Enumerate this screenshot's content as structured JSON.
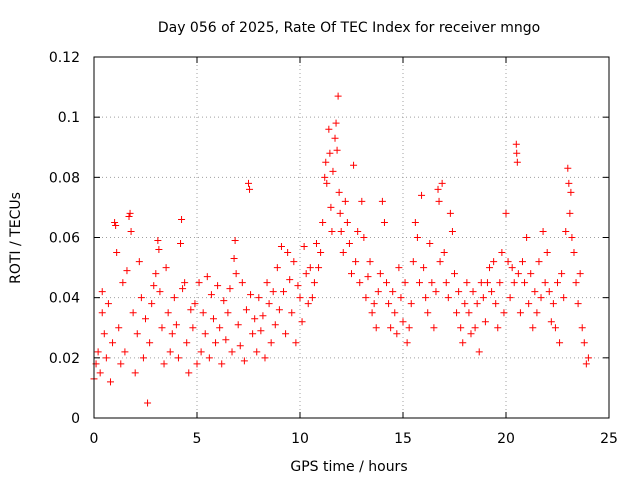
{
  "chart_data": {
    "type": "scatter",
    "title": "Day 056 of 2025, Rate Of TEC Index for receiver mngo",
    "xlabel": "GPS time / hours",
    "ylabel": "ROTI / TECUs",
    "xlim": [
      0,
      25
    ],
    "ylim": [
      0,
      0.12
    ],
    "xticks": [
      0,
      5,
      10,
      15,
      20,
      25
    ],
    "xtick_labels": [
      "0",
      "5",
      "10",
      "15",
      "20",
      "25"
    ],
    "yticks": [
      0,
      0.02,
      0.04,
      0.06,
      0.08,
      0.1,
      0.12
    ],
    "ytick_labels": [
      "0",
      "0.02",
      "0.04",
      "0.06",
      "0.08",
      "0.1",
      "0.12"
    ],
    "grid": true,
    "marker": "+",
    "series": [
      {
        "name": "ROTI",
        "color": "#ff0000",
        "points": [
          [
            0.0,
            0.013
          ],
          [
            0.1,
            0.018
          ],
          [
            0.2,
            0.022
          ],
          [
            0.3,
            0.015
          ],
          [
            0.4,
            0.035
          ],
          [
            0.4,
            0.042
          ],
          [
            0.5,
            0.028
          ],
          [
            0.6,
            0.02
          ],
          [
            0.7,
            0.038
          ],
          [
            0.8,
            0.012
          ],
          [
            0.9,
            0.025
          ],
          [
            1.0,
            0.065
          ],
          [
            1.05,
            0.064
          ],
          [
            1.1,
            0.055
          ],
          [
            1.2,
            0.03
          ],
          [
            1.3,
            0.018
          ],
          [
            1.4,
            0.045
          ],
          [
            1.5,
            0.022
          ],
          [
            1.6,
            0.049
          ],
          [
            1.7,
            0.067
          ],
          [
            1.75,
            0.068
          ],
          [
            1.8,
            0.062
          ],
          [
            1.9,
            0.035
          ],
          [
            2.0,
            0.015
          ],
          [
            2.1,
            0.028
          ],
          [
            2.2,
            0.052
          ],
          [
            2.3,
            0.04
          ],
          [
            2.4,
            0.02
          ],
          [
            2.5,
            0.033
          ],
          [
            2.6,
            0.005
          ],
          [
            2.7,
            0.025
          ],
          [
            2.8,
            0.038
          ],
          [
            2.9,
            0.044
          ],
          [
            3.0,
            0.048
          ],
          [
            3.1,
            0.059
          ],
          [
            3.15,
            0.056
          ],
          [
            3.2,
            0.042
          ],
          [
            3.3,
            0.03
          ],
          [
            3.4,
            0.018
          ],
          [
            3.5,
            0.05
          ],
          [
            3.6,
            0.035
          ],
          [
            3.7,
            0.022
          ],
          [
            3.8,
            0.028
          ],
          [
            3.9,
            0.04
          ],
          [
            4.0,
            0.031
          ],
          [
            4.1,
            0.02
          ],
          [
            4.2,
            0.058
          ],
          [
            4.25,
            0.066
          ],
          [
            4.3,
            0.043
          ],
          [
            4.4,
            0.045
          ],
          [
            4.5,
            0.025
          ],
          [
            4.6,
            0.015
          ],
          [
            4.7,
            0.036
          ],
          [
            4.8,
            0.03
          ],
          [
            4.9,
            0.038
          ],
          [
            5.0,
            0.018
          ],
          [
            5.1,
            0.045
          ],
          [
            5.2,
            0.022
          ],
          [
            5.3,
            0.035
          ],
          [
            5.4,
            0.028
          ],
          [
            5.5,
            0.047
          ],
          [
            5.6,
            0.02
          ],
          [
            5.7,
            0.041
          ],
          [
            5.8,
            0.033
          ],
          [
            5.9,
            0.025
          ],
          [
            6.0,
            0.044
          ],
          [
            6.1,
            0.03
          ],
          [
            6.2,
            0.018
          ],
          [
            6.3,
            0.039
          ],
          [
            6.4,
            0.026
          ],
          [
            6.5,
            0.035
          ],
          [
            6.6,
            0.043
          ],
          [
            6.7,
            0.022
          ],
          [
            6.8,
            0.053
          ],
          [
            6.85,
            0.059
          ],
          [
            6.9,
            0.048
          ],
          [
            7.0,
            0.031
          ],
          [
            7.1,
            0.024
          ],
          [
            7.2,
            0.045
          ],
          [
            7.3,
            0.019
          ],
          [
            7.4,
            0.036
          ],
          [
            7.5,
            0.078
          ],
          [
            7.55,
            0.076
          ],
          [
            7.6,
            0.041
          ],
          [
            7.7,
            0.028
          ],
          [
            7.8,
            0.033
          ],
          [
            7.9,
            0.022
          ],
          [
            8.0,
            0.04
          ],
          [
            8.1,
            0.029
          ],
          [
            8.2,
            0.034
          ],
          [
            8.3,
            0.02
          ],
          [
            8.4,
            0.045
          ],
          [
            8.5,
            0.038
          ],
          [
            8.6,
            0.025
          ],
          [
            8.7,
            0.042
          ],
          [
            8.8,
            0.031
          ],
          [
            8.9,
            0.05
          ],
          [
            9.0,
            0.036
          ],
          [
            9.1,
            0.057
          ],
          [
            9.2,
            0.042
          ],
          [
            9.3,
            0.028
          ],
          [
            9.4,
            0.055
          ],
          [
            9.5,
            0.046
          ],
          [
            9.6,
            0.035
          ],
          [
            9.7,
            0.052
          ],
          [
            9.8,
            0.025
          ],
          [
            9.9,
            0.044
          ],
          [
            10.0,
            0.04
          ],
          [
            10.1,
            0.032
          ],
          [
            10.2,
            0.057
          ],
          [
            10.3,
            0.048
          ],
          [
            10.4,
            0.038
          ],
          [
            10.5,
            0.05
          ],
          [
            10.6,
            0.04
          ],
          [
            10.7,
            0.045
          ],
          [
            10.8,
            0.058
          ],
          [
            10.9,
            0.05
          ],
          [
            11.0,
            0.055
          ],
          [
            11.1,
            0.065
          ],
          [
            11.2,
            0.08
          ],
          [
            11.25,
            0.085
          ],
          [
            11.3,
            0.078
          ],
          [
            11.4,
            0.096
          ],
          [
            11.45,
            0.088
          ],
          [
            11.5,
            0.07
          ],
          [
            11.55,
            0.062
          ],
          [
            11.6,
            0.082
          ],
          [
            11.7,
            0.093
          ],
          [
            11.75,
            0.098
          ],
          [
            11.8,
            0.089
          ],
          [
            11.85,
            0.107
          ],
          [
            11.9,
            0.075
          ],
          [
            11.95,
            0.068
          ],
          [
            12.0,
            0.062
          ],
          [
            12.1,
            0.055
          ],
          [
            12.2,
            0.072
          ],
          [
            12.3,
            0.065
          ],
          [
            12.4,
            0.058
          ],
          [
            12.5,
            0.048
          ],
          [
            12.6,
            0.084
          ],
          [
            12.7,
            0.052
          ],
          [
            12.8,
            0.062
          ],
          [
            12.9,
            0.045
          ],
          [
            13.0,
            0.072
          ],
          [
            13.1,
            0.06
          ],
          [
            13.2,
            0.04
          ],
          [
            13.3,
            0.047
          ],
          [
            13.4,
            0.052
          ],
          [
            13.5,
            0.035
          ],
          [
            13.6,
            0.038
          ],
          [
            13.7,
            0.03
          ],
          [
            13.8,
            0.042
          ],
          [
            13.9,
            0.048
          ],
          [
            14.0,
            0.072
          ],
          [
            14.1,
            0.065
          ],
          [
            14.2,
            0.045
          ],
          [
            14.3,
            0.038
          ],
          [
            14.4,
            0.03
          ],
          [
            14.5,
            0.042
          ],
          [
            14.6,
            0.035
          ],
          [
            14.7,
            0.028
          ],
          [
            14.8,
            0.05
          ],
          [
            14.9,
            0.04
          ],
          [
            15.0,
            0.032
          ],
          [
            15.1,
            0.045
          ],
          [
            15.2,
            0.025
          ],
          [
            15.3,
            0.03
          ],
          [
            15.4,
            0.038
          ],
          [
            15.5,
            0.052
          ],
          [
            15.6,
            0.065
          ],
          [
            15.7,
            0.06
          ],
          [
            15.8,
            0.045
          ],
          [
            15.9,
            0.074
          ],
          [
            16.0,
            0.05
          ],
          [
            16.1,
            0.04
          ],
          [
            16.2,
            0.035
          ],
          [
            16.3,
            0.058
          ],
          [
            16.4,
            0.045
          ],
          [
            16.5,
            0.03
          ],
          [
            16.6,
            0.042
          ],
          [
            16.7,
            0.076
          ],
          [
            16.75,
            0.072
          ],
          [
            16.8,
            0.052
          ],
          [
            16.9,
            0.078
          ],
          [
            17.0,
            0.055
          ],
          [
            17.1,
            0.045
          ],
          [
            17.2,
            0.04
          ],
          [
            17.3,
            0.068
          ],
          [
            17.4,
            0.062
          ],
          [
            17.5,
            0.048
          ],
          [
            17.6,
            0.035
          ],
          [
            17.7,
            0.042
          ],
          [
            17.8,
            0.03
          ],
          [
            17.9,
            0.025
          ],
          [
            18.0,
            0.038
          ],
          [
            18.1,
            0.045
          ],
          [
            18.2,
            0.035
          ],
          [
            18.3,
            0.028
          ],
          [
            18.4,
            0.042
          ],
          [
            18.5,
            0.03
          ],
          [
            18.6,
            0.038
          ],
          [
            18.7,
            0.022
          ],
          [
            18.8,
            0.045
          ],
          [
            18.9,
            0.04
          ],
          [
            19.0,
            0.032
          ],
          [
            19.1,
            0.045
          ],
          [
            19.2,
            0.05
          ],
          [
            19.3,
            0.042
          ],
          [
            19.4,
            0.052
          ],
          [
            19.5,
            0.038
          ],
          [
            19.6,
            0.03
          ],
          [
            19.7,
            0.045
          ],
          [
            19.8,
            0.055
          ],
          [
            19.9,
            0.035
          ],
          [
            20.0,
            0.068
          ],
          [
            20.1,
            0.052
          ],
          [
            20.2,
            0.04
          ],
          [
            20.3,
            0.05
          ],
          [
            20.4,
            0.045
          ],
          [
            20.5,
            0.091
          ],
          [
            20.52,
            0.088
          ],
          [
            20.55,
            0.085
          ],
          [
            20.6,
            0.048
          ],
          [
            20.7,
            0.035
          ],
          [
            20.8,
            0.052
          ],
          [
            20.9,
            0.045
          ],
          [
            21.0,
            0.06
          ],
          [
            21.1,
            0.038
          ],
          [
            21.2,
            0.048
          ],
          [
            21.3,
            0.03
          ],
          [
            21.4,
            0.042
          ],
          [
            21.5,
            0.035
          ],
          [
            21.6,
            0.052
          ],
          [
            21.7,
            0.04
          ],
          [
            21.8,
            0.062
          ],
          [
            21.9,
            0.045
          ],
          [
            22.0,
            0.055
          ],
          [
            22.1,
            0.042
          ],
          [
            22.2,
            0.032
          ],
          [
            22.3,
            0.038
          ],
          [
            22.4,
            0.03
          ],
          [
            22.5,
            0.045
          ],
          [
            22.6,
            0.025
          ],
          [
            22.7,
            0.048
          ],
          [
            22.8,
            0.04
          ],
          [
            22.9,
            0.062
          ],
          [
            23.0,
            0.083
          ],
          [
            23.05,
            0.078
          ],
          [
            23.1,
            0.068
          ],
          [
            23.15,
            0.075
          ],
          [
            23.2,
            0.06
          ],
          [
            23.3,
            0.055
          ],
          [
            23.4,
            0.045
          ],
          [
            23.5,
            0.038
          ],
          [
            23.6,
            0.048
          ],
          [
            23.7,
            0.03
          ],
          [
            23.8,
            0.025
          ],
          [
            23.9,
            0.018
          ],
          [
            24.0,
            0.02
          ]
        ]
      }
    ]
  }
}
